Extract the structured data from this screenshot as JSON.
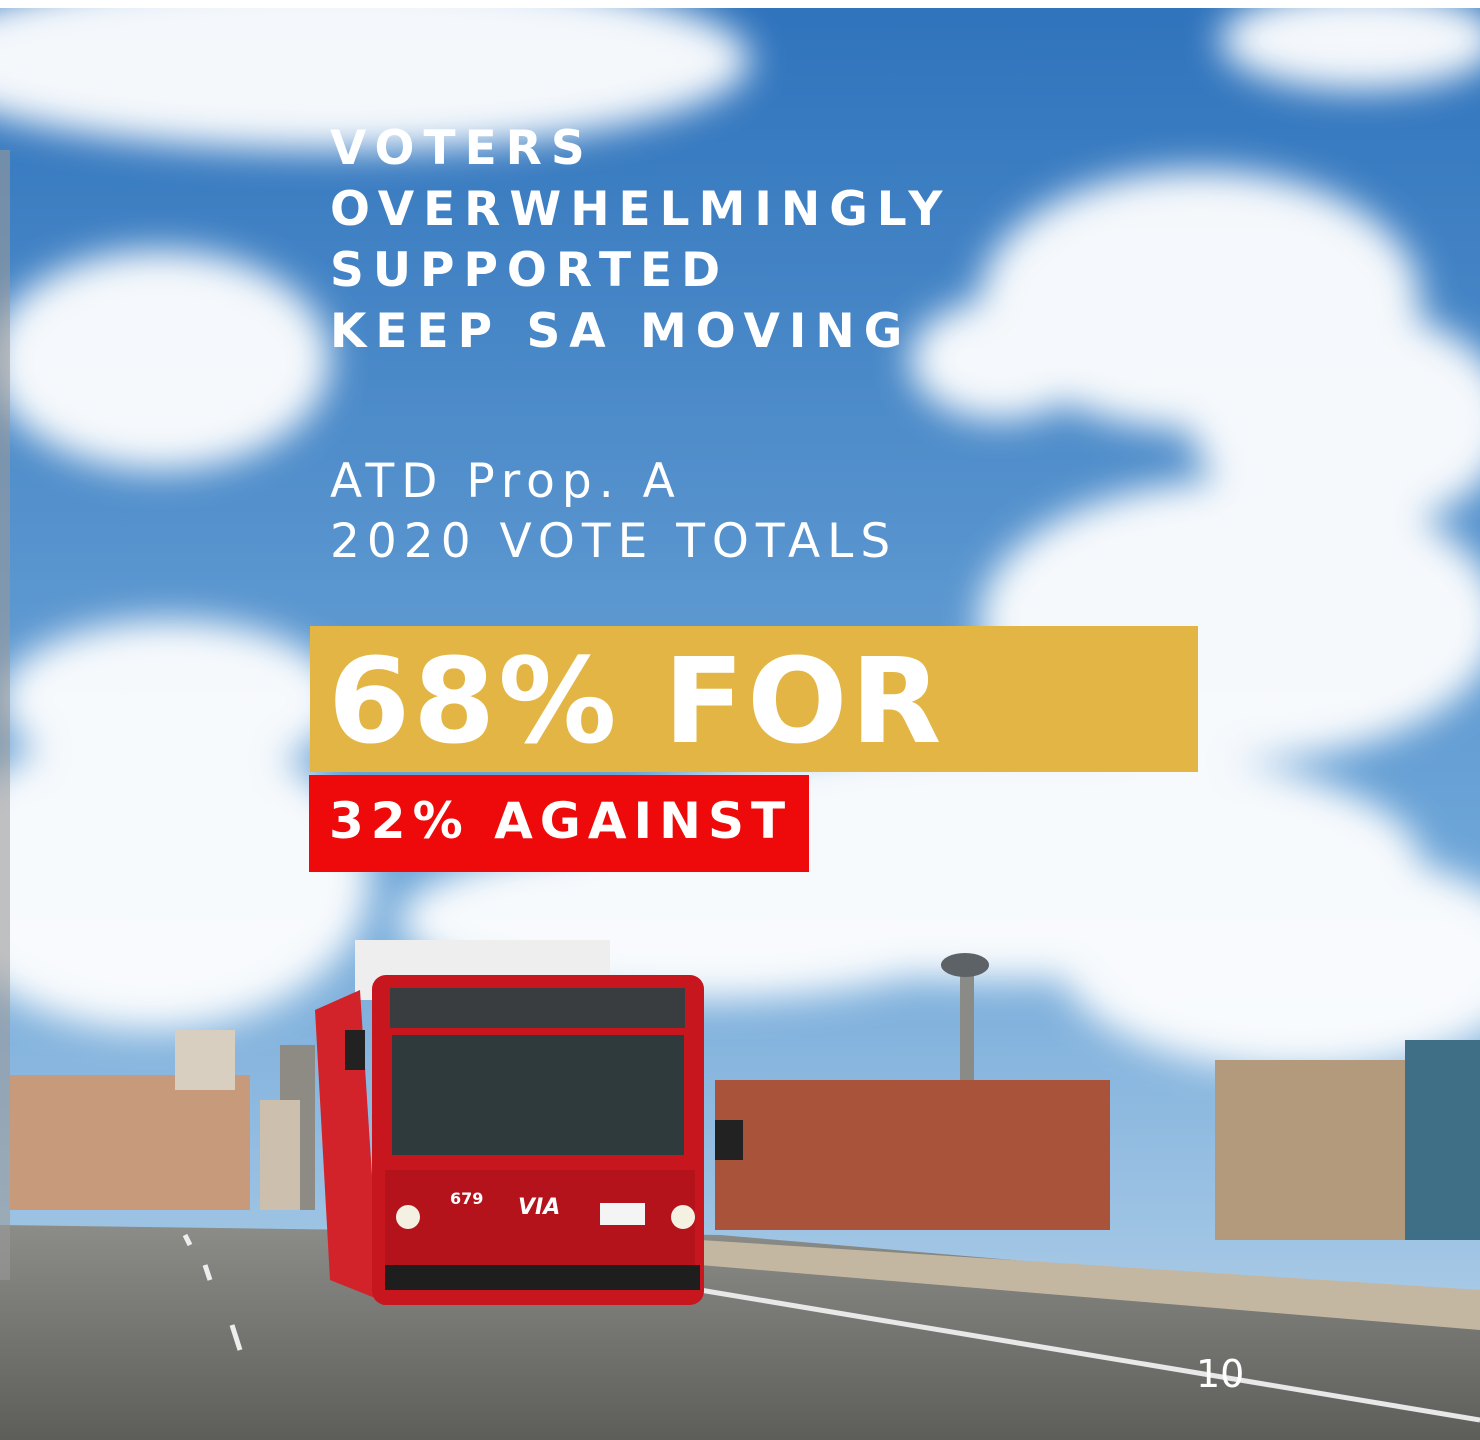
{
  "headline": {
    "lines": [
      "VOTERS",
      "OVERWHELMINGLY",
      "SUPPORTED",
      "KEEP SA MOVING"
    ]
  },
  "subtitle": {
    "lines": [
      "ATD Prop. A",
      "2020 VOTE TOTALS"
    ]
  },
  "results": {
    "for": "68% FOR",
    "against": "32% AGAINST"
  },
  "photo": {
    "bus_number": "679",
    "bus_logo": "VIA"
  },
  "page_number": "10"
}
